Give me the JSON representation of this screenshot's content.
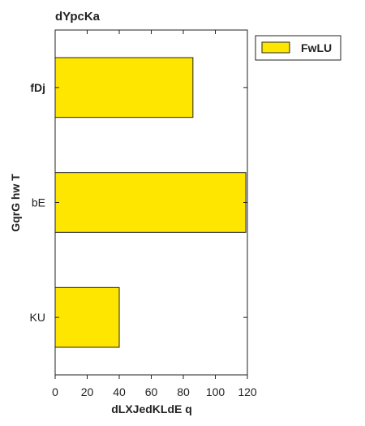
{
  "chart_data": {
    "type": "bar",
    "orientation": "horizontal",
    "title": "dYpcKa",
    "xlabel": "dLXJedKLdE q",
    "ylabel": "GqrG  hw T",
    "categories": [
      "fDj",
      "bE",
      "KU"
    ],
    "series": [
      {
        "name": "FwLU",
        "values": [
          86,
          119,
          40
        ],
        "color": "#ffe600"
      }
    ],
    "xlim": [
      0,
      120
    ],
    "xticks": [
      0,
      20,
      40,
      60,
      80,
      100,
      120
    ],
    "grid": false,
    "legend_position": "top-right"
  },
  "colors": {
    "bar_fill": "#ffe600",
    "bar_stroke": "#222222",
    "axis": "#222222"
  }
}
